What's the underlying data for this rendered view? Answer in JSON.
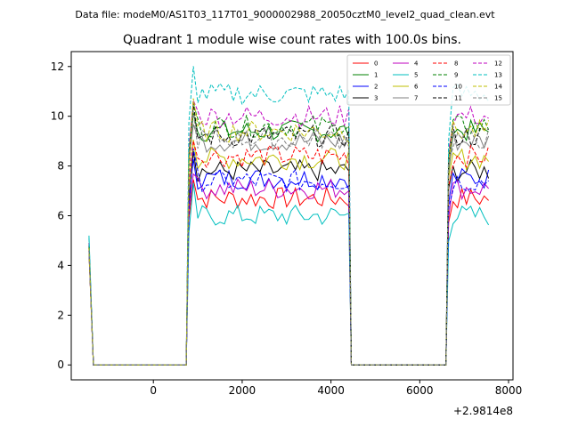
{
  "suptitle": "Data file: modeM0/AS1T03_117T01_9000002988_20050cztM0_level2_quad_clean.evt",
  "chart_data": {
    "type": "line",
    "title": "Quadrant 1 module wise count rates with 100.0s bins.",
    "xlabel": "",
    "ylabel": "",
    "x_offset_label": "+2.9814e8",
    "xlim": [
      -1850,
      8100
    ],
    "ylim": [
      -0.6,
      12.6
    ],
    "x_ticks": [
      0,
      2000,
      4000,
      6000,
      8000
    ],
    "y_ticks": [
      0,
      2,
      4,
      6,
      8,
      10,
      12
    ],
    "grid": false,
    "legend_position": "top-right",
    "x_offset": 298140000,
    "segments": [
      {
        "start": -1450,
        "end": 750,
        "kind": "low"
      },
      {
        "start": 750,
        "end": 4450,
        "kind": "high"
      },
      {
        "start": 4450,
        "end": 6600,
        "kind": "low"
      },
      {
        "start": 6600,
        "end": 7650,
        "kind": "high"
      }
    ],
    "bin_width": 100,
    "series": [
      {
        "name": "0",
        "color": "#ff0000",
        "dash": "solid",
        "start_value": 4.6,
        "level": 6.7
      },
      {
        "name": "1",
        "color": "#008000",
        "dash": "solid",
        "start_value": 4.7,
        "level": 9.4
      },
      {
        "name": "2",
        "color": "#0000ff",
        "dash": "solid",
        "start_value": 4.8,
        "level": 7.5
      },
      {
        "name": "3",
        "color": "#000000",
        "dash": "solid",
        "start_value": 4.9,
        "level": 7.8
      },
      {
        "name": "4",
        "color": "#bf00bf",
        "dash": "solid",
        "start_value": 4.8,
        "level": 7.1
      },
      {
        "name": "5",
        "color": "#00bfbf",
        "dash": "solid",
        "start_value": 5.2,
        "level": 6.0
      },
      {
        "name": "6",
        "color": "#bfbf00",
        "dash": "solid",
        "start_value": 4.5,
        "level": 8.3
      },
      {
        "name": "7",
        "color": "#808080",
        "dash": "solid",
        "start_value": 4.7,
        "level": 9.0
      },
      {
        "name": "8",
        "color": "#ff0000",
        "dash": "dashed",
        "start_value": 4.6,
        "level": 8.4
      },
      {
        "name": "9",
        "color": "#008000",
        "dash": "dashed",
        "start_value": 4.8,
        "level": 9.6
      },
      {
        "name": "10",
        "color": "#0000ff",
        "dash": "dashed",
        "start_value": 4.6,
        "level": 7.4
      },
      {
        "name": "11",
        "color": "#000000",
        "dash": "dashed",
        "start_value": 4.7,
        "level": 9.2
      },
      {
        "name": "12",
        "color": "#bf00bf",
        "dash": "dashed",
        "start_value": 4.9,
        "level": 10.0
      },
      {
        "name": "13",
        "color": "#00bfbf",
        "dash": "dashed",
        "start_value": 5.1,
        "level": 10.9
      },
      {
        "name": "14",
        "color": "#bfbf00",
        "dash": "dashed",
        "start_value": 4.7,
        "level": 9.4
      },
      {
        "name": "15",
        "color": "#808080",
        "dash": "dashed",
        "start_value": 4.6,
        "level": 9.1
      }
    ]
  }
}
